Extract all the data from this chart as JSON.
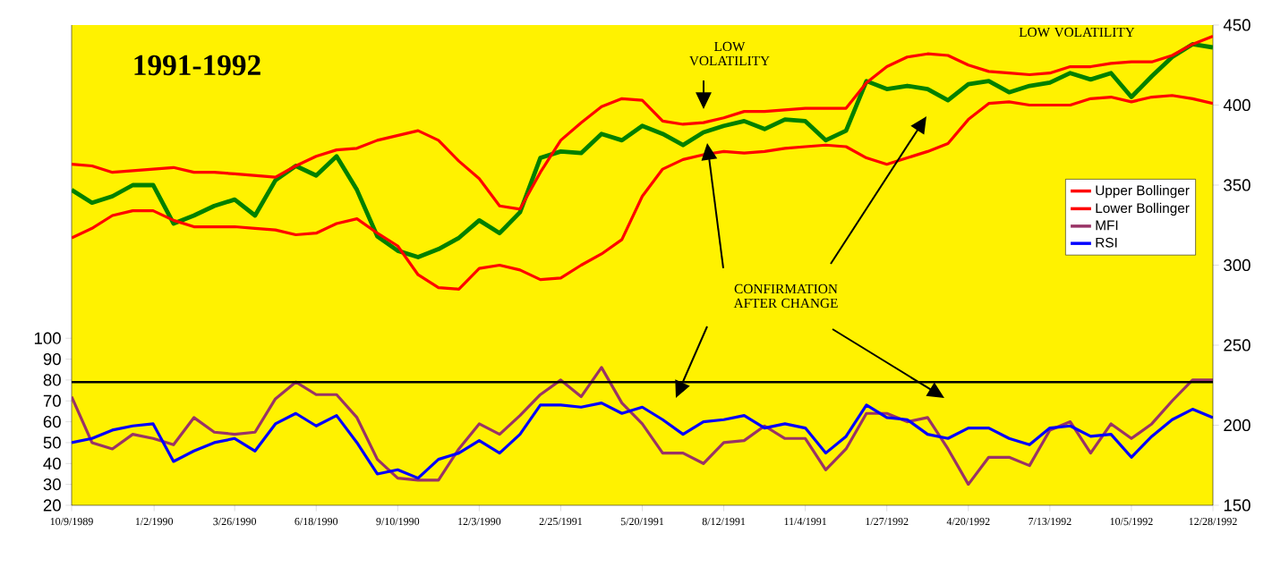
{
  "chart_data": {
    "type": "line",
    "title": "1991-1992",
    "x": [
      "1989-10-09",
      "1989-10-30",
      "1989-11-20",
      "1989-12-11",
      "1990-01-01",
      "1990-01-22",
      "1990-02-12",
      "1990-03-05",
      "1990-03-26",
      "1990-04-16",
      "1990-05-07",
      "1990-05-28",
      "1990-06-18",
      "1990-07-09",
      "1990-07-30",
      "1990-08-20",
      "1990-09-10",
      "1990-10-01",
      "1990-10-22",
      "1990-11-12",
      "1990-12-03",
      "1990-12-24",
      "1991-01-14",
      "1991-02-04",
      "1991-02-25",
      "1991-03-18",
      "1991-04-08",
      "1991-04-29",
      "1991-05-20",
      "1991-06-10",
      "1991-07-01",
      "1991-07-22",
      "1991-08-12",
      "1991-09-02",
      "1991-09-23",
      "1991-10-14",
      "1991-11-04",
      "1991-11-25",
      "1991-12-16",
      "1992-01-06",
      "1992-01-27",
      "1992-02-17",
      "1992-03-09",
      "1992-03-30",
      "1992-04-20",
      "1992-05-11",
      "1992-06-01",
      "1992-06-22",
      "1992-07-13",
      "1992-08-03",
      "1992-08-24",
      "1992-09-14",
      "1992-10-05",
      "1992-10-26",
      "1992-11-16",
      "1992-12-07",
      "1992-12-28"
    ],
    "series": [
      {
        "color": "#008000",
        "axis": "y2",
        "values": [
          347,
          339,
          343,
          350,
          350,
          326,
          331,
          337,
          341,
          331,
          353,
          362,
          356,
          368,
          347,
          318,
          309,
          305,
          310,
          317,
          328,
          320,
          333,
          367,
          371,
          370,
          382,
          378,
          387,
          382,
          375,
          383,
          387,
          390,
          385,
          391,
          390,
          378,
          384,
          415,
          410,
          412,
          410,
          403,
          413,
          415,
          408,
          412,
          414,
          420,
          416,
          420,
          405,
          418,
          430,
          438,
          436
        ]
      },
      {
        "name": "Upper Bollinger",
        "color": "#ff0000",
        "axis": "y2",
        "values": [
          363,
          362,
          358,
          359,
          360,
          361,
          358,
          358,
          357,
          356,
          355,
          362,
          368,
          372,
          373,
          378,
          381,
          384,
          378,
          365,
          354,
          337,
          335,
          358,
          378,
          389,
          399,
          404,
          403,
          390,
          388,
          389,
          392,
          396,
          396,
          397,
          398,
          398,
          398,
          414,
          424,
          430,
          432,
          431,
          425,
          421,
          420,
          419,
          420,
          424,
          424,
          426,
          427,
          427,
          431,
          438,
          443
        ]
      },
      {
        "name": "Lower Bollinger",
        "color": "#ff0000",
        "axis": "y2",
        "values": [
          317,
          323,
          331,
          334,
          334,
          328,
          324,
          324,
          324,
          323,
          322,
          319,
          320,
          326,
          329,
          320,
          312,
          294,
          286,
          285,
          298,
          300,
          297,
          291,
          292,
          300,
          307,
          316,
          343,
          360,
          366,
          369,
          371,
          370,
          371,
          373,
          374,
          375,
          374,
          367,
          363,
          367,
          371,
          376,
          391,
          401,
          402,
          400,
          400,
          400,
          404,
          405,
          402,
          405,
          406,
          404,
          401
        ]
      },
      {
        "name": "MFI",
        "color": "#993366",
        "values": [
          72,
          50,
          47,
          54,
          52,
          49,
          62,
          55,
          54,
          55,
          71,
          79,
          73,
          73,
          62,
          42,
          33,
          32,
          32,
          47,
          59,
          54,
          63,
          73,
          80,
          72,
          86,
          69,
          59,
          45,
          45,
          40,
          50,
          51,
          58,
          52,
          52,
          37,
          47,
          64,
          64,
          60,
          62,
          47,
          30,
          43,
          43,
          39,
          56,
          60,
          45,
          59,
          52,
          59,
          70,
          80,
          80
        ]
      },
      {
        "name": "RSI",
        "color": "#0000ff",
        "values": [
          50,
          52,
          56,
          58,
          59,
          41,
          46,
          50,
          52,
          46,
          59,
          64,
          58,
          63,
          50,
          35,
          37,
          33,
          42,
          45,
          51,
          45,
          54,
          68,
          68,
          67,
          69,
          64,
          67,
          61,
          54,
          60,
          61,
          63,
          57,
          59,
          57,
          45,
          53,
          68,
          62,
          61,
          54,
          52,
          57,
          57,
          52,
          49,
          57,
          58,
          53,
          54,
          43,
          53,
          61,
          66,
          62
        ]
      }
    ],
    "xlim": [
      "1989-10-09",
      "1992-12-28"
    ],
    "xticks": [
      {
        "value": "1989-10-09",
        "label": "10/9/1989"
      },
      {
        "value": "1990-01-02",
        "label": "1/2/1990"
      },
      {
        "value": "1990-03-26",
        "label": "3/26/1990"
      },
      {
        "value": "1990-06-18",
        "label": "6/18/1990"
      },
      {
        "value": "1990-09-10",
        "label": "9/10/1990"
      },
      {
        "value": "1990-12-03",
        "label": "12/3/1990"
      },
      {
        "value": "1991-02-25",
        "label": "2/25/1991"
      },
      {
        "value": "1991-05-20",
        "label": "5/20/1991"
      },
      {
        "value": "1991-08-12",
        "label": "8/12/1991"
      },
      {
        "value": "1991-11-04",
        "label": "11/4/1991"
      },
      {
        "value": "1992-01-27",
        "label": "1/27/1992"
      },
      {
        "value": "1992-04-20",
        "label": "4/20/1992"
      },
      {
        "value": "1992-07-13",
        "label": "7/13/1992"
      },
      {
        "value": "1992-10-05",
        "label": "10/5/1992"
      },
      {
        "value": "1992-12-28",
        "label": "12/28/1992"
      }
    ],
    "ylim": [
      20,
      250
    ],
    "yticks": [
      20,
      30,
      40,
      50,
      60,
      70,
      80,
      90,
      100
    ],
    "y2lim": [
      150,
      450
    ],
    "y2ticks": [
      150,
      200,
      250,
      300,
      350,
      400,
      450
    ],
    "ref_lines": [
      {
        "axis": "y",
        "value": 79,
        "color": "#000000"
      }
    ],
    "annotations": [
      "LOW VOLATILITY",
      "LOW VOLATILITY",
      "CONFIRMATION AFTER CHANGE"
    ],
    "legend": "right"
  }
}
